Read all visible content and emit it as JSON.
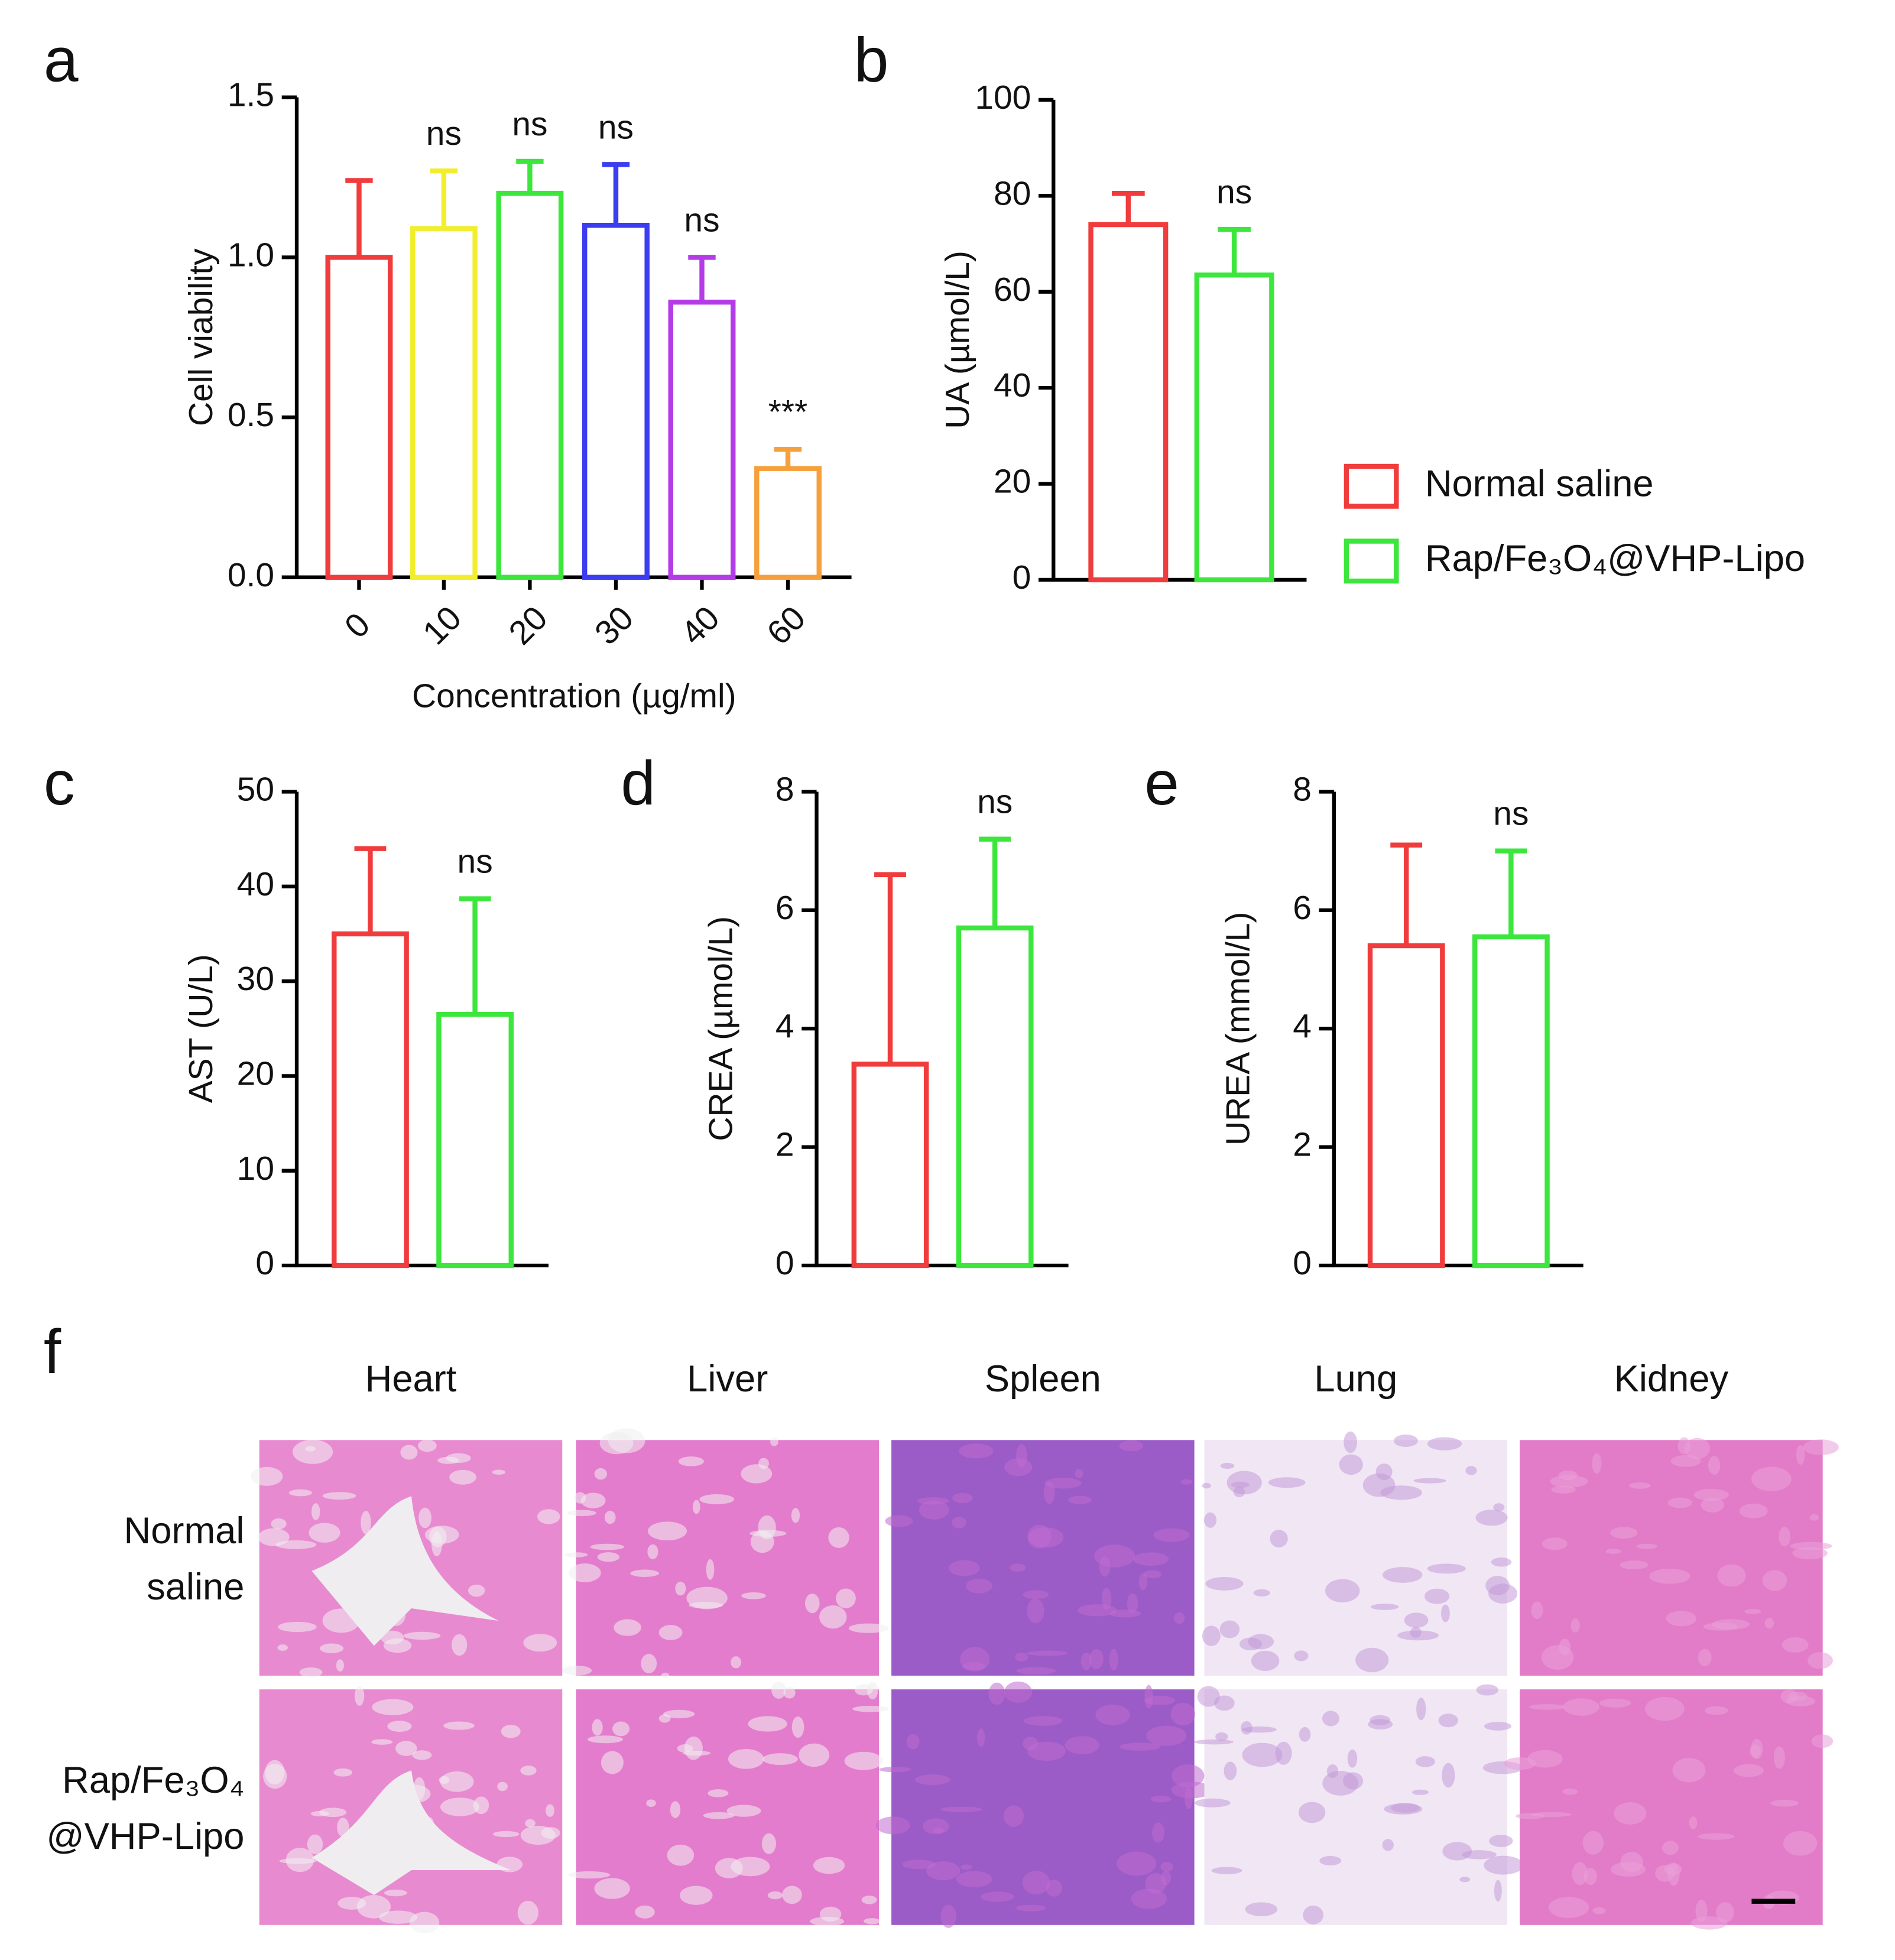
{
  "chart_data": [
    {
      "type": "bar",
      "label": "a",
      "ylabel": "Cell viability",
      "xlabel": "Concentration (µg/ml)",
      "categories": [
        "0",
        "10",
        "20",
        "30",
        "40",
        "60"
      ],
      "values": [
        1.0,
        1.09,
        1.2,
        1.1,
        0.86,
        0.34
      ],
      "errors": [
        0.24,
        0.18,
        0.1,
        0.19,
        0.14,
        0.06
      ],
      "colors": [
        "#f03c3c",
        "#f2ee2e",
        "#3ce63c",
        "#3c3cf0",
        "#b43ce6",
        "#f5a03c"
      ],
      "annotations": [
        null,
        "ns",
        "ns",
        "ns",
        "ns",
        "***"
      ],
      "ylim": [
        0,
        1.5
      ],
      "yticks": [
        {
          "value": 0,
          "label": "0.0"
        },
        {
          "value": 0.5,
          "label": "0.5"
        },
        {
          "value": 1,
          "label": "1.0"
        },
        {
          "value": 1.5,
          "label": "1.5"
        }
      ]
    },
    {
      "type": "bar",
      "label": "b",
      "ylabel": "UA (µmol/L)",
      "legend": true,
      "series": [
        {
          "name": "Normal saline",
          "color": "#f03c3c",
          "values": [
            74
          ],
          "errors": [
            6.5
          ]
        },
        {
          "name": "Rap/Fe₃O₄@VHP-Lipo",
          "color": "#3ce63c",
          "values": [
            63.5
          ],
          "errors": [
            9.5
          ],
          "annotations": [
            "ns"
          ]
        }
      ],
      "ylim": [
        0,
        100
      ],
      "yticks": [
        0,
        20,
        40,
        60,
        80,
        100
      ]
    },
    {
      "type": "bar",
      "label": "c",
      "ylabel": "AST (U/L)",
      "series": [
        {
          "name": "Normal saline",
          "color": "#f03c3c",
          "values": [
            35
          ],
          "errors": [
            9
          ]
        },
        {
          "name": "Rap/Fe₃O₄@VHP-Lipo",
          "color": "#3ce63c",
          "values": [
            26.5
          ],
          "errors": [
            12.2
          ],
          "annotations": [
            "ns"
          ]
        }
      ],
      "ylim": [
        0,
        50
      ],
      "yticks": [
        0,
        10,
        20,
        30,
        40,
        50
      ]
    },
    {
      "type": "bar",
      "label": "d",
      "ylabel": "CREA (µmol/L)",
      "series": [
        {
          "name": "Normal saline",
          "color": "#f03c3c",
          "values": [
            3.4
          ],
          "errors": [
            3.2
          ]
        },
        {
          "name": "Rap/Fe₃O₄@VHP-Lipo",
          "color": "#3ce63c",
          "values": [
            5.7
          ],
          "errors": [
            1.5
          ],
          "annotations": [
            "ns"
          ]
        }
      ],
      "ylim": [
        0,
        8
      ],
      "yticks": [
        0,
        2,
        4,
        6,
        8
      ]
    },
    {
      "type": "bar",
      "label": "e",
      "ylabel": "UREA (mmol/L)",
      "series": [
        {
          "name": "Normal saline",
          "color": "#f03c3c",
          "values": [
            5.4
          ],
          "errors": [
            1.7
          ]
        },
        {
          "name": "Rap/Fe₃O₄@VHP-Lipo",
          "color": "#3ce63c",
          "values": [
            5.55
          ],
          "errors": [
            1.45
          ],
          "annotations": [
            "ns"
          ]
        }
      ],
      "ylim": [
        0,
        8
      ],
      "yticks": [
        0,
        2,
        4,
        6,
        8
      ]
    }
  ],
  "histology": {
    "label": "f",
    "columns": [
      "Heart",
      "Liver",
      "Spleen",
      "Lung",
      "Kidney"
    ],
    "rows": [
      [
        "Normal",
        "saline"
      ],
      [
        "Rap/Fe₃O₄",
        "@VHP-Lipo"
      ]
    ]
  }
}
